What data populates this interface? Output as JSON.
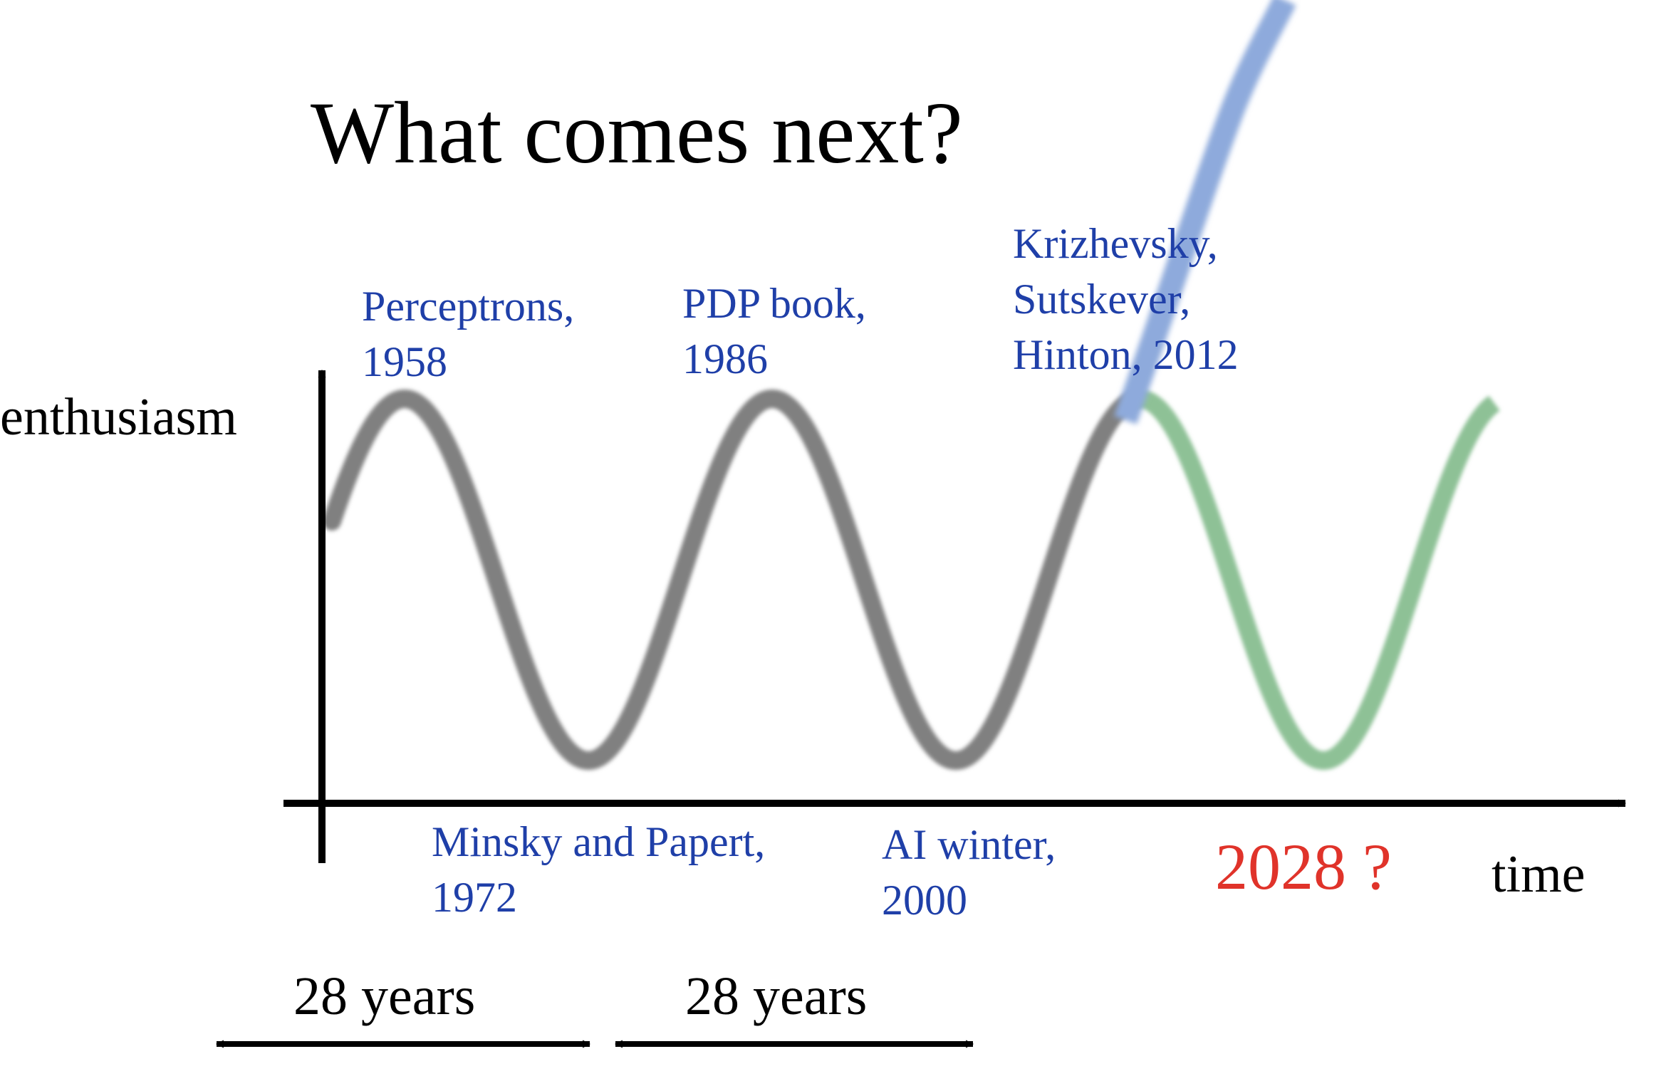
{
  "title": "What comes next?",
  "axes": {
    "y_label": "enthusiasm",
    "x_label": "time"
  },
  "colors": {
    "history": "#808080",
    "forecast_wave": "#8ec196",
    "forecast_rise": "#8eaadc",
    "annotation": "#1f3fa8",
    "forecast_label": "#e0332a",
    "axis": "#000000"
  },
  "peaks": [
    {
      "id": "perceptrons",
      "lines": [
        "Perceptrons,",
        "1958"
      ]
    },
    {
      "id": "pdp",
      "lines": [
        "PDP book,",
        "1986"
      ]
    },
    {
      "id": "krizhevsky",
      "lines": [
        "Krizhevsky,",
        "Sutskever,",
        "Hinton, 2012"
      ]
    }
  ],
  "troughs": [
    {
      "id": "minsky",
      "lines": [
        "Minsky and Papert,",
        "1972"
      ]
    },
    {
      "id": "ai-winter",
      "lines": [
        "AI winter,",
        "2000"
      ]
    }
  ],
  "forecast_label": "2028 ?",
  "spans": [
    {
      "label": "28 years"
    },
    {
      "label": "28 years"
    }
  ]
}
